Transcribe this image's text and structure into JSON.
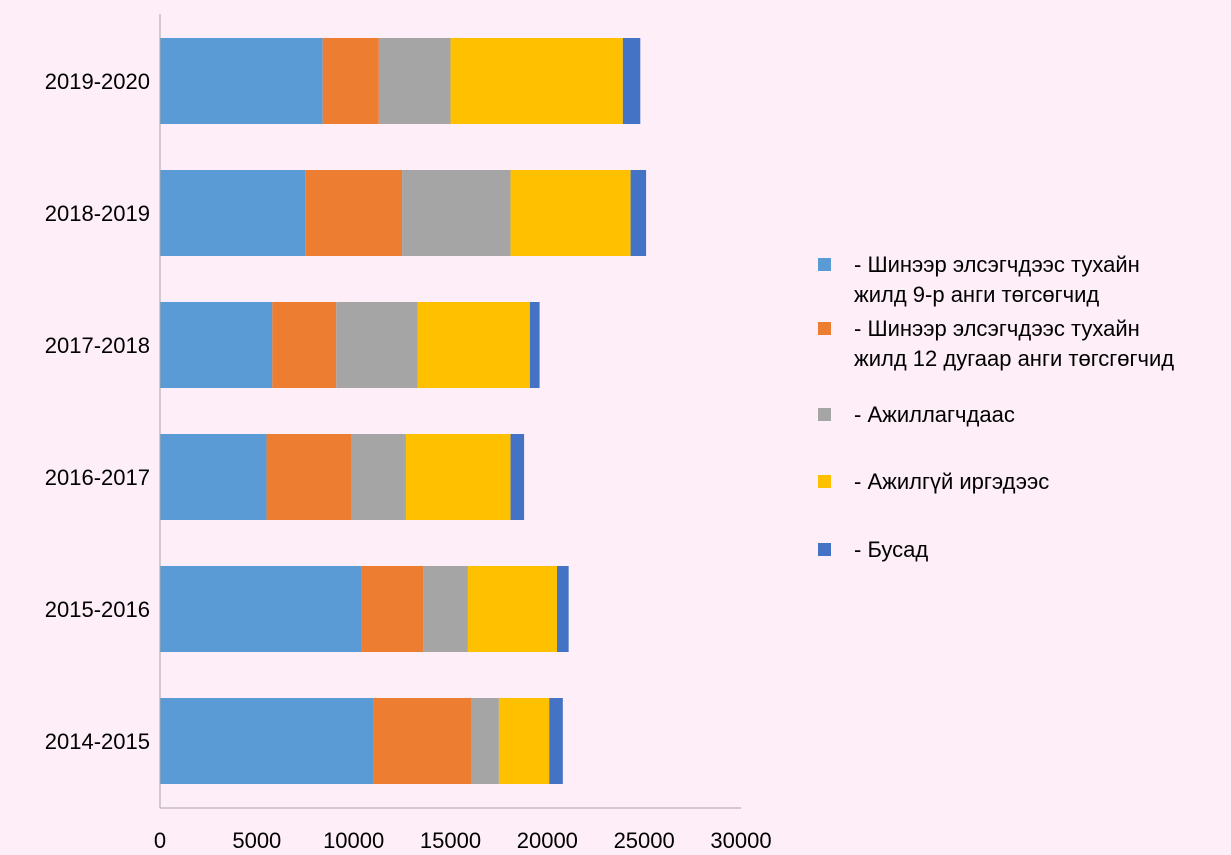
{
  "chart_data": {
    "type": "bar",
    "orientation": "horizontal",
    "stacked": true,
    "title": "",
    "xlabel": "",
    "ylabel": "",
    "categories": [
      "2019-2020",
      "2018-2019",
      "2017-2018",
      "2016-2017",
      "2015-2016",
      "2014-2015"
    ],
    "xlim": [
      0,
      30000
    ],
    "xticks": [
      "0",
      "5000",
      "10000",
      "15000",
      "20000",
      "25000",
      "30000"
    ],
    "grid": false,
    "legend_position": "right",
    "series": [
      {
        "name": "-   Шинээр элсэгчдээс тухайн\nжилд  9-р анги төгсөгчид",
        "color": "#5b9bd5",
        "values": [
          8400,
          7500,
          5800,
          5500,
          10400,
          11000
        ]
      },
      {
        "name": "-   Шинээр элсэгчдээс тухайн\nжилд 12 дугаар анги төгсгөгчид",
        "color": "#ed7d31",
        "values": [
          2900,
          5000,
          3300,
          4400,
          3200,
          5100
        ]
      },
      {
        "name": "- Ажиллагчдаас",
        "color": "#a5a5a5",
        "values": [
          3700,
          5600,
          4200,
          2800,
          2300,
          1400
        ]
      },
      {
        "name": " - Ажилгүй иргэдээс",
        "color": "#ffc000",
        "values": [
          8900,
          6200,
          5800,
          5400,
          4600,
          2600
        ]
      },
      {
        "name": "- Бусад",
        "color": "#4472c4",
        "values": [
          900,
          800,
          500,
          700,
          600,
          700
        ]
      }
    ]
  }
}
